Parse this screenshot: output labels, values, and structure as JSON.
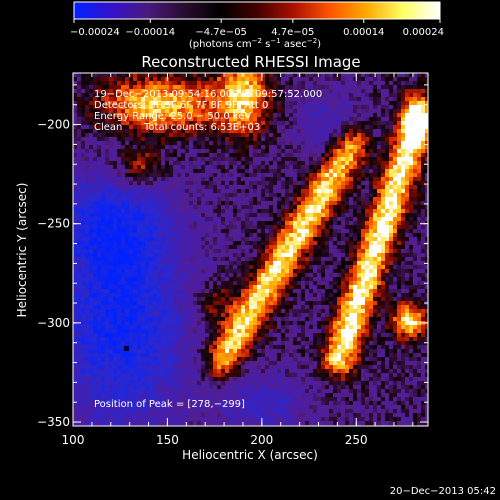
{
  "chart_data": {
    "type": "heatmap",
    "title": "Reconstructed RHESSI Image",
    "xlabel": "Heliocentric X (arcsec)",
    "ylabel": "Heliocentric Y (arcsec)",
    "xlim": [
      100,
      288
    ],
    "ylim": [
      -352,
      -174
    ],
    "x_ticks": [
      100,
      150,
      200,
      250
    ],
    "y_ticks": [
      -200,
      -250,
      -300,
      -350
    ],
    "x_tick_labels": [
      "100",
      "150",
      "200",
      "250"
    ],
    "y_tick_labels": [
      "−200",
      "−250",
      "−300",
      "−350"
    ],
    "colorbar": {
      "min": -0.00024,
      "max": 0.00024,
      "ticks": [
        -0.00024,
        -0.00014,
        -4.7e-05,
        4.7e-05,
        0.00014,
        0.00024
      ],
      "tick_labels": [
        "−0.00024",
        "−0.00014",
        "−4.7e−05",
        "4.7e−05",
        "0.00014",
        "0.00024"
      ],
      "units_main": "(photons cm",
      "units_exp1": "−2",
      "units_mid": " s",
      "units_exp2": "−1",
      "units_end": " asec",
      "units_exp3": "−2",
      "units_close": ")",
      "colors": [
        "#0022ff",
        "#3311cc",
        "#4a1a80",
        "#2a0d30",
        "#000000",
        "#440000",
        "#aa1100",
        "#ff5500",
        "#ffaa00",
        "#ffff66",
        "#ffffff"
      ]
    },
    "annotations": {
      "time_range": "19−Dec−2013 09:54:16.000 to 09:57:52.000",
      "detectors": "Detectors: 3F 5F 6F 7F 8F 9F, Att 0",
      "energy_range": "Energy Range: 25.0 − 50.0 keV",
      "clean_label": "Clean",
      "total_counts": "Total counts: 6.53E+03",
      "peak_position": "Position of Peak = [278,−299]"
    },
    "peak": [
      278,
      -299
    ],
    "footer_date": "20−Dec−2013 05:42"
  }
}
